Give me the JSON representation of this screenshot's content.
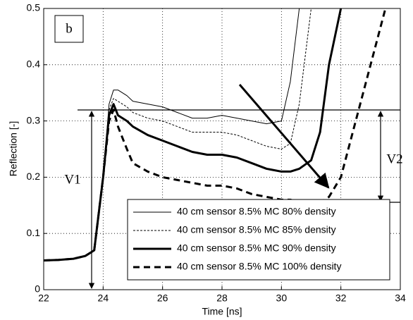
{
  "chart_data": {
    "type": "line",
    "xlabel": "Time [ns]",
    "ylabel": "Reflection [-]",
    "xlim": [
      22,
      34
    ],
    "ylim": [
      0,
      0.5
    ],
    "xticks": [
      22,
      24,
      26,
      28,
      30,
      32,
      34
    ],
    "yticks": [
      0,
      0.1,
      0.2,
      0.3,
      0.4,
      0.5
    ],
    "grid": true,
    "legend": "lower right",
    "annotations": [
      "b",
      "V1",
      "V2"
    ],
    "x": [
      22,
      22.5,
      23,
      23.4,
      23.7,
      24,
      24.2,
      24.35,
      24.5,
      24.8,
      25,
      25.5,
      26,
      26.5,
      27,
      27.5,
      28,
      28.5,
      29,
      29.5,
      30,
      30.3,
      30.6,
      31,
      31.3,
      31.6,
      32,
      32.3,
      32.6,
      33,
      33.5,
      34
    ],
    "series": [
      {
        "name": "40 cm sensor 8.5% MC 80% density",
        "color": "#000000",
        "width": 1,
        "dash": false,
        "values": [
          0.052,
          0.053,
          0.055,
          0.06,
          0.07,
          0.2,
          0.33,
          0.355,
          0.355,
          0.345,
          0.335,
          0.33,
          0.325,
          0.315,
          0.305,
          0.305,
          0.31,
          0.305,
          0.3,
          0.295,
          0.3,
          0.37,
          0.5,
          null,
          null,
          null,
          null,
          null,
          null,
          null,
          null,
          null
        ]
      },
      {
        "name": "40 cm sensor 8.5% MC 85% density",
        "color": "#000000",
        "width": 1,
        "dash": true,
        "values": [
          0.052,
          0.053,
          0.055,
          0.06,
          0.07,
          0.2,
          0.32,
          0.34,
          0.335,
          0.325,
          0.315,
          0.305,
          0.3,
          0.29,
          0.28,
          0.28,
          0.28,
          0.275,
          0.265,
          0.255,
          0.25,
          0.26,
          0.33,
          0.5,
          null,
          null,
          null,
          null,
          null,
          null,
          null,
          null
        ]
      },
      {
        "name": "40 cm sensor 8.5% MC 90% density",
        "color": "#000000",
        "width": 3,
        "dash": false,
        "values": [
          0.052,
          0.053,
          0.055,
          0.06,
          0.07,
          0.2,
          0.31,
          0.33,
          0.31,
          0.3,
          0.29,
          0.275,
          0.265,
          0.255,
          0.245,
          0.24,
          0.24,
          0.235,
          0.225,
          0.215,
          0.21,
          0.21,
          0.215,
          0.23,
          0.28,
          0.4,
          0.5,
          null,
          null,
          null,
          null,
          null
        ]
      },
      {
        "name": "40 cm sensor 8.5% MC 100% density",
        "color": "#000000",
        "width": 3,
        "dash": true,
        "values": [
          0.052,
          0.053,
          0.055,
          0.06,
          0.07,
          0.2,
          0.3,
          0.32,
          0.29,
          0.25,
          0.225,
          0.21,
          0.2,
          0.195,
          0.19,
          0.185,
          0.185,
          0.18,
          0.17,
          0.165,
          0.16,
          0.16,
          0.155,
          0.155,
          0.155,
          0.165,
          0.2,
          0.26,
          0.32,
          0.4,
          0.5,
          null
        ]
      }
    ]
  }
}
